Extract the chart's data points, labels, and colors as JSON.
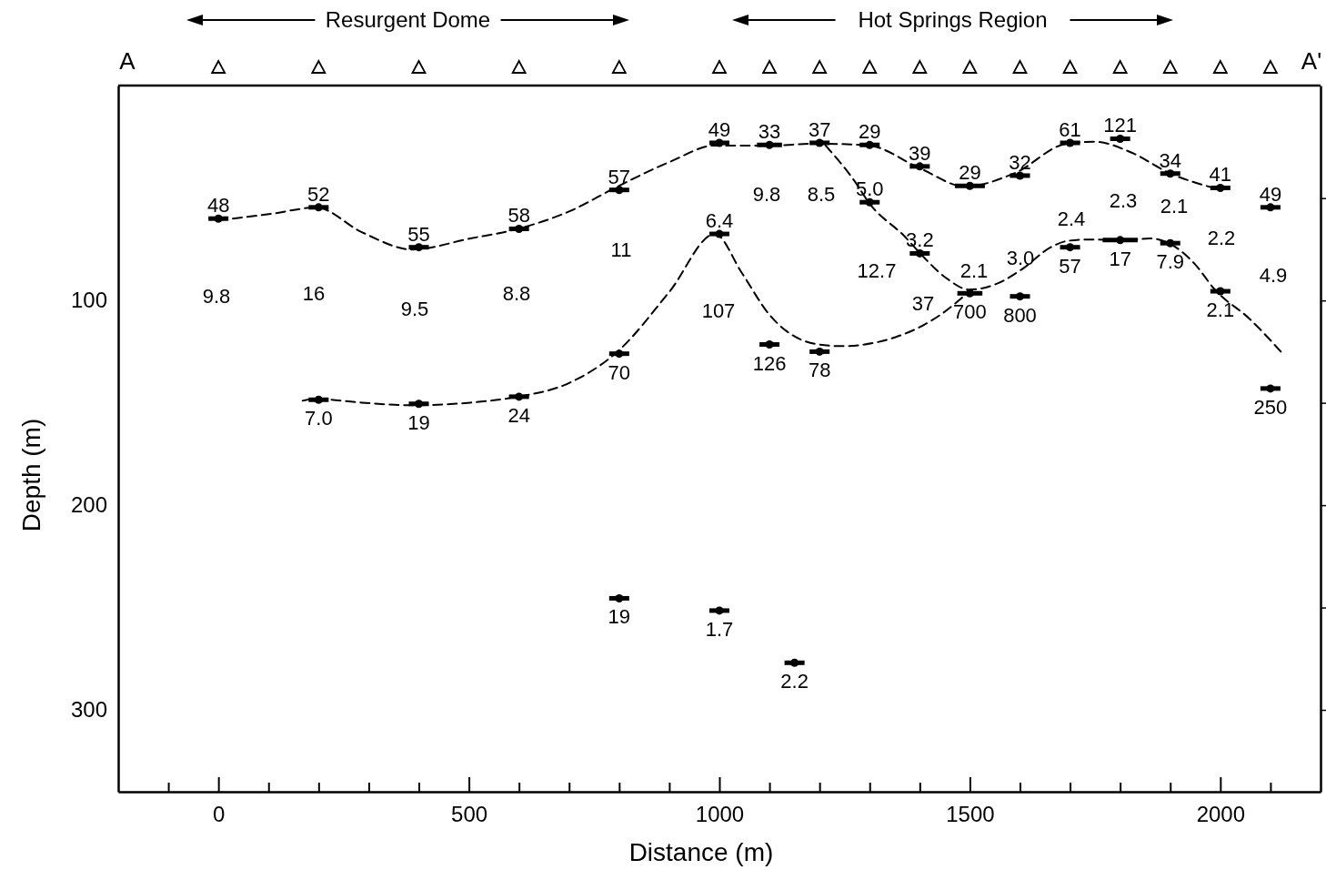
{
  "chart_data": {
    "type": "scatter",
    "marker": "circle",
    "xlabel": "Distance (m)",
    "ylabel": "Depth (m)",
    "xlim": [
      -200,
      2200
    ],
    "ylim": [
      340,
      -5
    ],
    "xticks": [
      {
        "value": -100,
        "label": null
      },
      0,
      {
        "value": 100,
        "label": null
      },
      {
        "value": 200,
        "label": null
      },
      {
        "value": 300,
        "label": null
      },
      {
        "value": 400,
        "label": null
      },
      500,
      {
        "value": 600,
        "label": null
      },
      {
        "value": 700,
        "label": null
      },
      {
        "value": 800,
        "label": null
      },
      {
        "value": 900,
        "label": null
      },
      1000,
      {
        "value": 1100,
        "label": null
      },
      {
        "value": 1200,
        "label": null
      },
      {
        "value": 1300,
        "label": null
      },
      {
        "value": 1400,
        "label": null
      },
      1500,
      {
        "value": 1600,
        "label": null
      },
      {
        "value": 1700,
        "label": null
      },
      {
        "value": 1800,
        "label": null
      },
      {
        "value": 1900,
        "label": null
      },
      2000,
      {
        "value": 2100,
        "label": null
      }
    ],
    "yticks": [
      {
        "value": 50,
        "label": null
      },
      100,
      {
        "value": 150,
        "label": null
      },
      200,
      {
        "value": 250,
        "label": null
      },
      300
    ],
    "series": [
      {
        "color": "#000000",
        "x": [
          0,
          200,
          400,
          600,
          800,
          1000,
          1100,
          1200,
          1300,
          1400,
          1500,
          1600,
          1700,
          1800,
          1900,
          2000,
          2100
        ],
        "values": [
          60,
          54.5,
          74,
          65,
          46,
          23,
          24,
          23,
          24,
          34.5,
          44,
          39,
          23,
          21,
          38,
          45,
          54.5
        ],
        "xerrors": [
          20,
          20,
          20,
          20,
          20,
          20,
          25,
          20,
          20,
          20,
          30,
          20,
          20,
          20,
          20,
          20,
          20
        ]
      },
      {
        "color": "#000000",
        "x": [
          1000,
          1300,
          1400
        ],
        "values": [
          67.5,
          52,
          77
        ],
        "xerrors": [
          20,
          20,
          20
        ]
      },
      {
        "color": "#000000",
        "x": [
          1500,
          1600,
          1700,
          1800,
          1900,
          2000,
          200,
          400,
          600,
          800,
          1100,
          1200,
          2100,
          800,
          1000,
          1150
        ],
        "values": [
          96.5,
          98,
          74,
          70.5,
          72,
          95.5,
          148.5,
          150.5,
          147,
          126,
          121.5,
          125,
          143,
          245.5,
          251.5,
          277
        ],
        "xerrors": [
          25,
          20,
          20,
          35,
          20,
          20,
          20,
          20,
          20,
          20,
          20,
          20,
          20,
          20,
          20,
          20
        ]
      },
      {
        "type": "line",
        "color": "#000000",
        "marker": "none",
        "line_style": "dashed",
        "x": [
          0,
          105,
          195,
          286,
          387,
          503,
          593,
          702,
          797,
          901,
          991,
          1099,
          1195,
          1298,
          1400,
          1490,
          1591,
          1693,
          1750,
          1823,
          1897,
          1989
        ],
        "values": [
          60.8,
          57.7,
          54.6,
          66.6,
          75.1,
          69.7,
          65.3,
          56.3,
          44.3,
          32.3,
          24.3,
          24.3,
          23.4,
          24.3,
          35.4,
          44.3,
          37.6,
          23.4,
          22.5,
          27.8,
          37.6,
          45.2
        ]
      },
      {
        "type": "line",
        "color": "#000000",
        "marker": "none",
        "line_style": "dashed",
        "x": [
          1212,
          1271,
          1298,
          1371,
          1400,
          1452,
          1499,
          1552,
          1606,
          1660,
          1693,
          1732,
          1810,
          1859,
          1897,
          1949,
          1989,
          2058,
          2127
        ],
        "values": [
          24.3,
          42.1,
          52.1,
          69,
          76.8,
          88.9,
          94.7,
          92,
          84.4,
          74.2,
          71,
          70.2,
          70.6,
          69.7,
          72,
          82.2,
          94.7,
          108.9,
          126.7
        ]
      },
      {
        "type": "line",
        "color": "#000000",
        "marker": "none",
        "line_style": "dashed",
        "x": [
          168,
          193,
          286,
          387,
          503,
          593,
          702,
          797,
          901,
          991,
          1045,
          1099,
          1195,
          1244,
          1353,
          1443,
          1499
        ],
        "values": [
          149,
          148.1,
          149.9,
          151.2,
          149.9,
          147.2,
          140.1,
          124.9,
          95.5,
          67.5,
          86.6,
          106.7,
          121.4,
          122.3,
          117.8,
          106.7,
          95.5
        ]
      }
    ],
    "annotations": [
      "A",
      "A'",
      "Resurgent Dome",
      "Hot Springs Region",
      "48",
      "52",
      "55",
      "58",
      "57",
      "49",
      "33",
      "37",
      "29",
      "39",
      "29",
      "32",
      "61",
      "121",
      "34",
      "41",
      "49",
      "6.4",
      "5.0",
      "3.2",
      "700",
      "800",
      "57",
      "17",
      "7.9",
      "2.1",
      "7.0",
      "19",
      "24",
      "70",
      "126",
      "78",
      "250",
      "19",
      "1.7",
      "2.2",
      "9.8",
      "16",
      "9.5",
      "8.8",
      "11",
      "107",
      "9.8",
      "8.5",
      "12.7",
      "37",
      "2.3",
      "2.1",
      "2.2",
      "4.9",
      "2.1",
      "3.0",
      "2.4"
    ]
  }
}
